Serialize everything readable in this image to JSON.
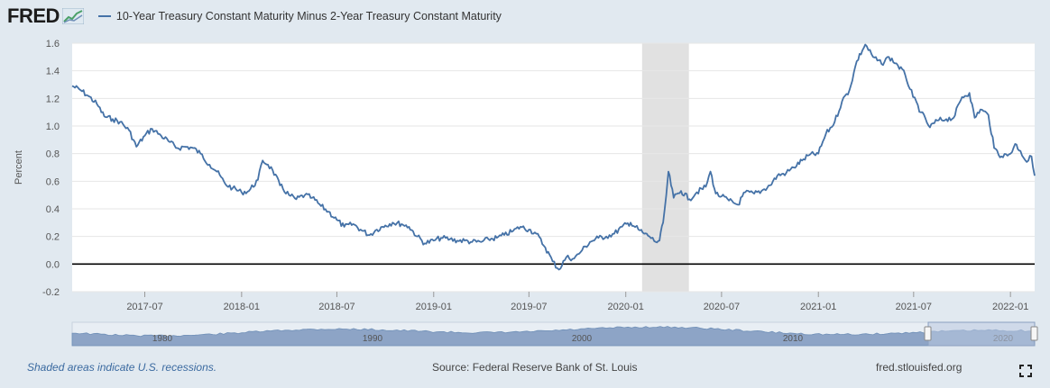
{
  "logo": {
    "text": "FRED"
  },
  "footer": {
    "note": "Shaded areas indicate U.S. recessions.",
    "source": "Source: Federal Reserve Bank of St. Louis",
    "site": "fred.stlouisfed.org"
  },
  "colors": {
    "line": "#4572a7",
    "recession": "#e1e1e1",
    "zero": "#000000",
    "grid": "#e6e6e6",
    "navigator": "#8da4c6"
  },
  "chart_data": {
    "type": "line",
    "ylabel": "Percent",
    "ylim": [
      -0.2,
      1.6
    ],
    "yticks": [
      -0.2,
      0.0,
      0.2,
      0.4,
      0.6,
      0.8,
      1.0,
      1.2,
      1.4,
      1.6
    ],
    "ytick_labels": [
      "-0.2",
      "0.0",
      "0.2",
      "0.4",
      "0.6",
      "0.8",
      "1.0",
      "1.2",
      "1.4",
      "1.6"
    ],
    "xlim": [
      "2017-02-13",
      "2022-02-16"
    ],
    "xticks": [
      "2017-07-01",
      "2018-01-01",
      "2018-07-01",
      "2019-01-01",
      "2019-07-01",
      "2020-01-01",
      "2020-07-01",
      "2021-01-01",
      "2021-07-01",
      "2022-01-01"
    ],
    "xtick_labels": [
      "2017-07",
      "2018-01",
      "2018-07",
      "2019-01",
      "2019-07",
      "2020-01",
      "2020-07",
      "2021-01",
      "2021-07",
      "2022-01"
    ],
    "recessions": [
      {
        "start": "2020-02-01",
        "end": "2020-04-30"
      }
    ],
    "zero_line": 0.0,
    "grid": true,
    "series": [
      {
        "name": "10-Year Treasury Constant Maturity Minus 2-Year Treasury Constant Maturity",
        "points": [
          [
            "2017-02-13",
            1.29
          ],
          [
            "2017-03-01",
            1.26
          ],
          [
            "2017-03-15",
            1.22
          ],
          [
            "2017-04-01",
            1.16
          ],
          [
            "2017-04-15",
            1.07
          ],
          [
            "2017-05-01",
            1.05
          ],
          [
            "2017-05-15",
            1.03
          ],
          [
            "2017-06-01",
            0.97
          ],
          [
            "2017-06-15",
            0.85
          ],
          [
            "2017-07-01",
            0.93
          ],
          [
            "2017-07-15",
            0.98
          ],
          [
            "2017-08-01",
            0.93
          ],
          [
            "2017-08-15",
            0.89
          ],
          [
            "2017-09-01",
            0.84
          ],
          [
            "2017-09-15",
            0.85
          ],
          [
            "2017-10-01",
            0.84
          ],
          [
            "2017-10-15",
            0.8
          ],
          [
            "2017-11-01",
            0.72
          ],
          [
            "2017-11-15",
            0.67
          ],
          [
            "2017-12-01",
            0.58
          ],
          [
            "2017-12-15",
            0.55
          ],
          [
            "2018-01-01",
            0.52
          ],
          [
            "2018-01-15",
            0.53
          ],
          [
            "2018-02-01",
            0.61
          ],
          [
            "2018-02-10",
            0.75
          ],
          [
            "2018-02-20",
            0.72
          ],
          [
            "2018-03-01",
            0.68
          ],
          [
            "2018-03-15",
            0.57
          ],
          [
            "2018-04-01",
            0.5
          ],
          [
            "2018-04-15",
            0.47
          ],
          [
            "2018-05-01",
            0.5
          ],
          [
            "2018-05-15",
            0.48
          ],
          [
            "2018-06-01",
            0.42
          ],
          [
            "2018-06-15",
            0.38
          ],
          [
            "2018-07-01",
            0.32
          ],
          [
            "2018-07-15",
            0.27
          ],
          [
            "2018-08-01",
            0.29
          ],
          [
            "2018-08-15",
            0.25
          ],
          [
            "2018-09-01",
            0.21
          ],
          [
            "2018-09-15",
            0.25
          ],
          [
            "2018-10-01",
            0.28
          ],
          [
            "2018-10-15",
            0.3
          ],
          [
            "2018-11-01",
            0.29
          ],
          [
            "2018-11-15",
            0.27
          ],
          [
            "2018-12-01",
            0.2
          ],
          [
            "2018-12-15",
            0.15
          ],
          [
            "2019-01-01",
            0.17
          ],
          [
            "2019-01-15",
            0.19
          ],
          [
            "2019-02-01",
            0.18
          ],
          [
            "2019-02-15",
            0.17
          ],
          [
            "2019-03-01",
            0.17
          ],
          [
            "2019-03-15",
            0.16
          ],
          [
            "2019-04-01",
            0.16
          ],
          [
            "2019-04-15",
            0.18
          ],
          [
            "2019-05-01",
            0.19
          ],
          [
            "2019-05-15",
            0.21
          ],
          [
            "2019-06-01",
            0.24
          ],
          [
            "2019-06-15",
            0.27
          ],
          [
            "2019-07-01",
            0.25
          ],
          [
            "2019-07-15",
            0.22
          ],
          [
            "2019-08-01",
            0.12
          ],
          [
            "2019-08-15",
            0.02
          ],
          [
            "2019-08-27",
            -0.04
          ],
          [
            "2019-09-10",
            0.05
          ],
          [
            "2019-09-25",
            0.04
          ],
          [
            "2019-10-10",
            0.1
          ],
          [
            "2019-10-25",
            0.16
          ],
          [
            "2019-11-10",
            0.19
          ],
          [
            "2019-11-25",
            0.2
          ],
          [
            "2019-12-10",
            0.22
          ],
          [
            "2019-12-25",
            0.27
          ],
          [
            "2020-01-10",
            0.3
          ],
          [
            "2020-01-25",
            0.25
          ],
          [
            "2020-02-05",
            0.22
          ],
          [
            "2020-02-15",
            0.2
          ],
          [
            "2020-02-27",
            0.16
          ],
          [
            "2020-03-05",
            0.17
          ],
          [
            "2020-03-12",
            0.3
          ],
          [
            "2020-03-18",
            0.5
          ],
          [
            "2020-03-22",
            0.67
          ],
          [
            "2020-04-01",
            0.48
          ],
          [
            "2020-04-15",
            0.53
          ],
          [
            "2020-05-01",
            0.47
          ],
          [
            "2020-05-15",
            0.52
          ],
          [
            "2020-06-01",
            0.56
          ],
          [
            "2020-06-10",
            0.67
          ],
          [
            "2020-06-20",
            0.51
          ],
          [
            "2020-07-01",
            0.49
          ],
          [
            "2020-07-15",
            0.46
          ],
          [
            "2020-08-01",
            0.43
          ],
          [
            "2020-08-15",
            0.52
          ],
          [
            "2020-09-01",
            0.51
          ],
          [
            "2020-09-15",
            0.53
          ],
          [
            "2020-10-01",
            0.57
          ],
          [
            "2020-10-15",
            0.64
          ],
          [
            "2020-11-01",
            0.66
          ],
          [
            "2020-11-15",
            0.7
          ],
          [
            "2020-12-01",
            0.75
          ],
          [
            "2020-12-15",
            0.79
          ],
          [
            "2021-01-01",
            0.8
          ],
          [
            "2021-01-15",
            0.94
          ],
          [
            "2021-02-01",
            1.03
          ],
          [
            "2021-02-15",
            1.18
          ],
          [
            "2021-03-01",
            1.26
          ],
          [
            "2021-03-15",
            1.47
          ],
          [
            "2021-03-31",
            1.59
          ],
          [
            "2021-04-15",
            1.5
          ],
          [
            "2021-05-01",
            1.45
          ],
          [
            "2021-05-15",
            1.5
          ],
          [
            "2021-06-01",
            1.44
          ],
          [
            "2021-06-15",
            1.37
          ],
          [
            "2021-06-30",
            1.21
          ],
          [
            "2021-07-15",
            1.1
          ],
          [
            "2021-08-01",
            0.99
          ],
          [
            "2021-08-15",
            1.04
          ],
          [
            "2021-09-01",
            1.05
          ],
          [
            "2021-09-15",
            1.06
          ],
          [
            "2021-10-01",
            1.21
          ],
          [
            "2021-10-15",
            1.24
          ],
          [
            "2021-10-25",
            1.06
          ],
          [
            "2021-11-05",
            1.12
          ],
          [
            "2021-11-20",
            1.08
          ],
          [
            "2021-12-01",
            0.84
          ],
          [
            "2021-12-15",
            0.78
          ],
          [
            "2022-01-01",
            0.8
          ],
          [
            "2022-01-10",
            0.87
          ],
          [
            "2022-01-20",
            0.82
          ],
          [
            "2022-02-01",
            0.74
          ],
          [
            "2022-02-10",
            0.78
          ],
          [
            "2022-02-16",
            0.64
          ]
        ]
      }
    ],
    "navigator": {
      "labels": [
        "1980",
        "1990",
        "2000",
        "2010",
        "2020"
      ]
    }
  }
}
